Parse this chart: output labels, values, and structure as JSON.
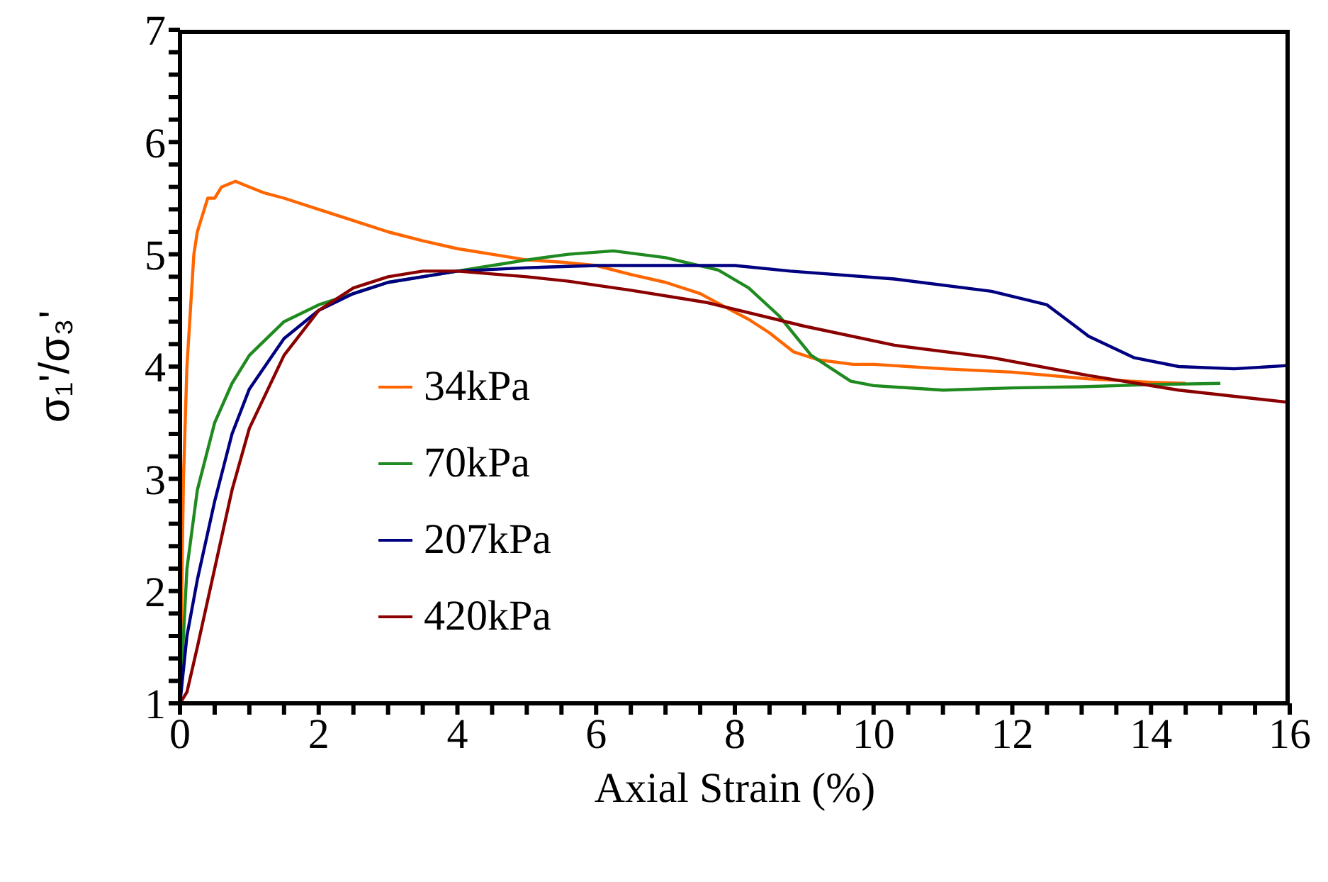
{
  "chart_data": {
    "type": "line",
    "xlabel": "Axial Strain (%)",
    "ylabel": "σ₁'/σ₃'",
    "xlim": [
      0,
      16
    ],
    "ylim": [
      1,
      7
    ],
    "xticks": [
      0,
      {
        "value": 0.5,
        "label": null
      },
      {
        "value": 1,
        "label": null
      },
      {
        "value": 1.5,
        "label": null
      },
      2,
      {
        "value": 2.5,
        "label": null
      },
      {
        "value": 3,
        "label": null
      },
      {
        "value": 3.5,
        "label": null
      },
      4,
      {
        "value": 4.5,
        "label": null
      },
      {
        "value": 5,
        "label": null
      },
      {
        "value": 5.5,
        "label": null
      },
      6,
      {
        "value": 6.5,
        "label": null
      },
      {
        "value": 7,
        "label": null
      },
      {
        "value": 7.5,
        "label": null
      },
      8,
      {
        "value": 8.5,
        "label": null
      },
      {
        "value": 9,
        "label": null
      },
      {
        "value": 9.5,
        "label": null
      },
      10,
      {
        "value": 10.5,
        "label": null
      },
      {
        "value": 11,
        "label": null
      },
      {
        "value": 11.5,
        "label": null
      },
      12,
      {
        "value": 12.5,
        "label": null
      },
      {
        "value": 13,
        "label": null
      },
      {
        "value": 13.5,
        "label": null
      },
      14,
      {
        "value": 14.5,
        "label": null
      },
      {
        "value": 15,
        "label": null
      },
      {
        "value": 15.5,
        "label": null
      },
      16
    ],
    "yticks": [
      1,
      {
        "value": 1.2,
        "label": null
      },
      {
        "value": 1.4,
        "label": null
      },
      {
        "value": 1.6,
        "label": null
      },
      {
        "value": 1.8,
        "label": null
      },
      2,
      {
        "value": 2.2,
        "label": null
      },
      {
        "value": 2.4,
        "label": null
      },
      {
        "value": 2.6,
        "label": null
      },
      {
        "value": 2.8,
        "label": null
      },
      3,
      {
        "value": 3.2,
        "label": null
      },
      {
        "value": 3.4,
        "label": null
      },
      {
        "value": 3.6,
        "label": null
      },
      {
        "value": 3.8,
        "label": null
      },
      4,
      {
        "value": 4.2,
        "label": null
      },
      {
        "value": 4.4,
        "label": null
      },
      {
        "value": 4.6,
        "label": null
      },
      {
        "value": 4.8,
        "label": null
      },
      5,
      {
        "value": 5.2,
        "label": null
      },
      {
        "value": 5.4,
        "label": null
      },
      {
        "value": 5.6,
        "label": null
      },
      {
        "value": 5.8,
        "label": null
      },
      6,
      {
        "value": 6.2,
        "label": null
      },
      {
        "value": 6.4,
        "label": null
      },
      {
        "value": 6.6,
        "label": null
      },
      {
        "value": 6.8,
        "label": null
      },
      7
    ],
    "legend": "left",
    "marker": "none",
    "line_style": "solid",
    "series": [
      {
        "name": "34kPa",
        "color": "#ff6600",
        "x": [
          0,
          0.05,
          0.1,
          0.15,
          0.2,
          0.25,
          0.3,
          0.4,
          0.5,
          0.6,
          0.8,
          1,
          1.2,
          1.5,
          2,
          2.5,
          3,
          3.5,
          4,
          4.5,
          5,
          5.5,
          6,
          6.5,
          7,
          7.5,
          7.8,
          8.2,
          8.5,
          8.85,
          9.2,
          9.7,
          10,
          11,
          12,
          13.1,
          14,
          14.5
        ],
        "values": [
          1,
          3,
          4,
          4.5,
          5,
          5.2,
          5.3,
          5.5,
          5.5,
          5.6,
          5.65,
          5.6,
          5.55,
          5.5,
          5.4,
          5.3,
          5.2,
          5.12,
          5.05,
          5,
          4.95,
          4.93,
          4.9,
          4.82,
          4.75,
          4.65,
          4.55,
          4.42,
          4.3,
          4.13,
          4.06,
          4.02,
          4.02,
          3.98,
          3.95,
          3.89,
          3.86,
          3.85
        ]
      },
      {
        "name": "70kPa",
        "color": "#1f8a1f",
        "x": [
          0,
          0.1,
          0.25,
          0.5,
          0.75,
          1,
          1.5,
          2,
          2.5,
          3,
          3.5,
          4,
          4.5,
          5,
          5.6,
          6.25,
          7,
          7.76,
          8.2,
          8.64,
          9.1,
          9.67,
          10,
          11,
          12,
          13,
          14,
          15
        ],
        "values": [
          1,
          2.2,
          2.9,
          3.5,
          3.85,
          4.1,
          4.4,
          4.55,
          4.65,
          4.75,
          4.8,
          4.85,
          4.9,
          4.95,
          5,
          5.03,
          4.97,
          4.86,
          4.7,
          4.45,
          4.1,
          3.87,
          3.83,
          3.79,
          3.81,
          3.82,
          3.84,
          3.85
        ]
      },
      {
        "name": "207kPa",
        "color": "#000080",
        "x": [
          0,
          0.1,
          0.25,
          0.5,
          0.75,
          1,
          1.5,
          2,
          2.5,
          3,
          4,
          5,
          6,
          7,
          8,
          8.8,
          10.3,
          11.7,
          12.5,
          13.1,
          13.75,
          14.4,
          15.2,
          16
        ],
        "values": [
          1,
          1.6,
          2.1,
          2.8,
          3.4,
          3.8,
          4.25,
          4.5,
          4.65,
          4.75,
          4.85,
          4.88,
          4.9,
          4.9,
          4.9,
          4.85,
          4.78,
          4.67,
          4.55,
          4.27,
          4.08,
          4,
          3.98,
          4.01
        ]
      },
      {
        "name": "420kPa",
        "color": "#8b0000",
        "x": [
          0,
          0.1,
          0.25,
          0.5,
          0.75,
          1,
          1.5,
          2,
          2.5,
          3,
          3.5,
          4,
          5,
          5.6,
          6.5,
          7.6,
          9,
          10.3,
          11.7,
          13.1,
          14.4,
          16
        ],
        "values": [
          1,
          1.1,
          1.5,
          2.2,
          2.9,
          3.45,
          4.1,
          4.5,
          4.7,
          4.8,
          4.85,
          4.85,
          4.8,
          4.76,
          4.68,
          4.57,
          4.36,
          4.19,
          4.08,
          3.92,
          3.79,
          3.68
        ]
      }
    ]
  }
}
